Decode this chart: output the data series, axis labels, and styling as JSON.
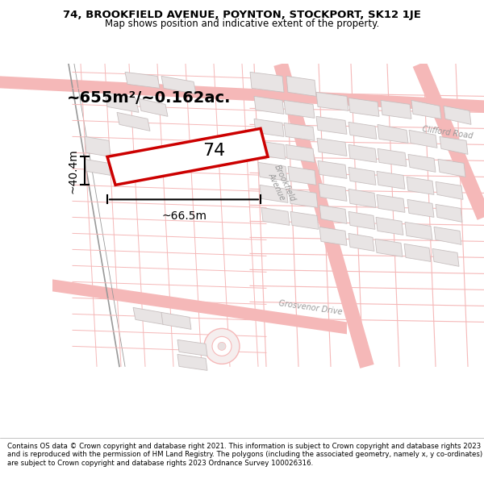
{
  "title_line1": "74, BROOKFIELD AVENUE, POYNTON, STOCKPORT, SK12 1JE",
  "title_line2": "Map shows position and indicative extent of the property.",
  "footer_text": "Contains OS data © Crown copyright and database right 2021. This information is subject to Crown copyright and database rights 2023 and is reproduced with the permission of HM Land Registry. The polygons (including the associated geometry, namely x, y co-ordinates) are subject to Crown copyright and database rights 2023 Ordnance Survey 100026316.",
  "bg_color": "#ffffff",
  "road_line_color": "#f5b8b8",
  "building_fill": "#e8e4e4",
  "building_edge": "#c8c0c0",
  "subject_edge": "#cc0000",
  "subject_fill": "#ffffff",
  "area_text": "~655m²/~0.162ac.",
  "width_text": "~66.5m",
  "height_text": "~40.4m",
  "number_text": "74",
  "road_label_grosvenor": "Grosvenor Drive",
  "road_label_brookfield": "Brookfield\nAvenue",
  "road_label_clifford": "Clifford Road",
  "title_fontsize": 9.5,
  "subtitle_fontsize": 8.5,
  "footer_fontsize": 6.2,
  "area_fontsize": 14,
  "annotation_fontsize": 10,
  "number_fontsize": 16,
  "road_label_fontsize": 7
}
